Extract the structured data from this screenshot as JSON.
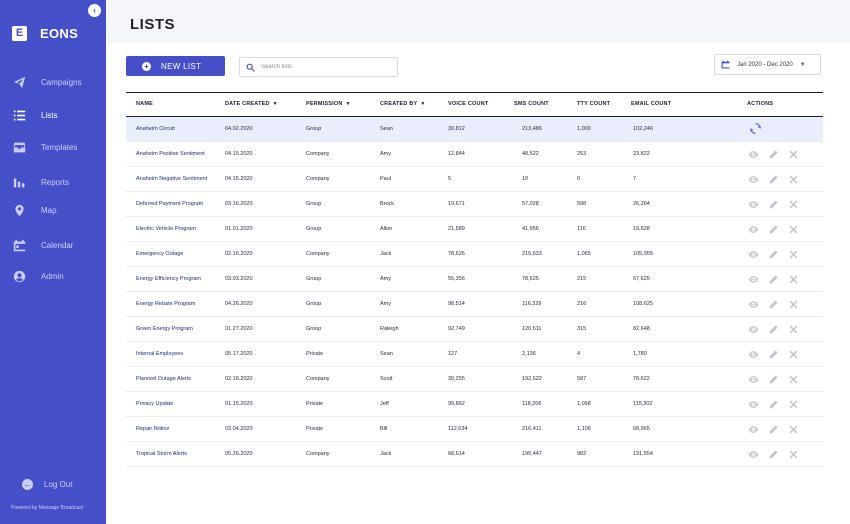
{
  "sidebar": {
    "brand_letter": "E",
    "brand_name": "EONS",
    "items": [
      {
        "label": "Campaigns",
        "icon": "paper-plane-icon"
      },
      {
        "label": "Lists",
        "icon": "list-icon"
      },
      {
        "label": "Templates",
        "icon": "inbox-icon"
      },
      {
        "label": "Reports",
        "icon": "bar-chart-icon"
      },
      {
        "label": "Map",
        "icon": "map-pin-icon"
      },
      {
        "label": "Calendar",
        "icon": "calendar-icon"
      },
      {
        "label": "Admin",
        "icon": "user-icon"
      }
    ],
    "logout_label": "Log Out",
    "powered_by": "Powered by Message Broadcast"
  },
  "header": {
    "title": "LISTS"
  },
  "toolbar": {
    "new_list_label": "NEW LIST",
    "search_placeholder": "Search lists",
    "date_range": "Jan 2020 - Dec 2020"
  },
  "table": {
    "columns": {
      "name": "NAME",
      "date_created": "DATE CREATED",
      "permission": "PERMISSION",
      "created_by": "CREATED BY",
      "voice_count": "VOICE COUNT",
      "sms_count": "SMS COUNT",
      "tty_count": "TTY COUNT",
      "email_count": "EMAIL COUNT",
      "actions": "ACTIONS"
    },
    "rows": [
      {
        "name": "Anaheim Circuit",
        "date": "04.02.2020",
        "permission": "Group",
        "created_by": "Sean",
        "voice": "30,812",
        "sms": "213,486",
        "tty": "1,000",
        "email": "102,246",
        "loading": true
      },
      {
        "name": "Anaheim Positive Sentiment",
        "date": "04.15.2020",
        "permission": "Company",
        "created_by": "Amy",
        "voice": "12,844",
        "sms": "48,522",
        "tty": "253",
        "email": "23,822"
      },
      {
        "name": "Anaheim Negative Sentiment",
        "date": "04.15.2020",
        "permission": "Company",
        "created_by": "Paul",
        "voice": "5",
        "sms": "10",
        "tty": "0",
        "email": "7"
      },
      {
        "name": "Deferred Payment Program",
        "date": "03.16.2020",
        "permission": "Group",
        "created_by": "Brock",
        "voice": "19,671",
        "sms": "57,028",
        "tty": "598",
        "email": "26,264"
      },
      {
        "name": "Electric Vehicle Program",
        "date": "01.01.2020",
        "permission": "Group",
        "created_by": "Allen",
        "voice": "21,589",
        "sms": "41,956",
        "tty": "116",
        "email": "19,628"
      },
      {
        "name": "Emergency Outage",
        "date": "02.16.2020",
        "permission": "Company",
        "created_by": "Jack",
        "voice": "78,626",
        "sms": "215,633",
        "tty": "1,065",
        "email": "105,955"
      },
      {
        "name": "Energy Efficiency Program",
        "date": "03.03.2020",
        "permission": "Group",
        "created_by": "Amy",
        "voice": "55,356",
        "sms": "78,625",
        "tty": "215",
        "email": "67,625"
      },
      {
        "name": "Energy Rebate Program",
        "date": "04.26.2020",
        "permission": "Group",
        "created_by": "Amy",
        "voice": "98,514",
        "sms": "116,329",
        "tty": "216",
        "email": "108,625"
      },
      {
        "name": "Green Energy Program",
        "date": "01.27.2020",
        "permission": "Group",
        "created_by": "Raleigh",
        "voice": "92,749",
        "sms": "120,611",
        "tty": "315",
        "email": "82,648"
      },
      {
        "name": "Internal Employees",
        "date": "05.17.2020",
        "permission": "Private",
        "created_by": "Sean",
        "voice": "127",
        "sms": "2,136",
        "tty": "4",
        "email": "1,780"
      },
      {
        "name": "Planned Outage Alerts",
        "date": "02.18.2020",
        "permission": "Company",
        "created_by": "Scott",
        "voice": "30,255",
        "sms": "192,622",
        "tty": "587",
        "email": "78,622"
      },
      {
        "name": "Privacy Update",
        "date": "01.15.2020",
        "permission": "Private",
        "created_by": "Jeff",
        "voice": "99,862",
        "sms": "118,206",
        "tty": "1,098",
        "email": "115,302"
      },
      {
        "name": "Repair Notice",
        "date": "03.04.2020",
        "permission": "Private",
        "created_by": "Bill",
        "voice": "112,634",
        "sms": "216,411",
        "tty": "1,106",
        "email": "68,965"
      },
      {
        "name": "Tropical Storm Alerts",
        "date": "05.26.2020",
        "permission": "Company",
        "created_by": "Jack",
        "voice": "68,614",
        "sms": "195,447",
        "tty": "982",
        "email": "131,554"
      }
    ]
  }
}
